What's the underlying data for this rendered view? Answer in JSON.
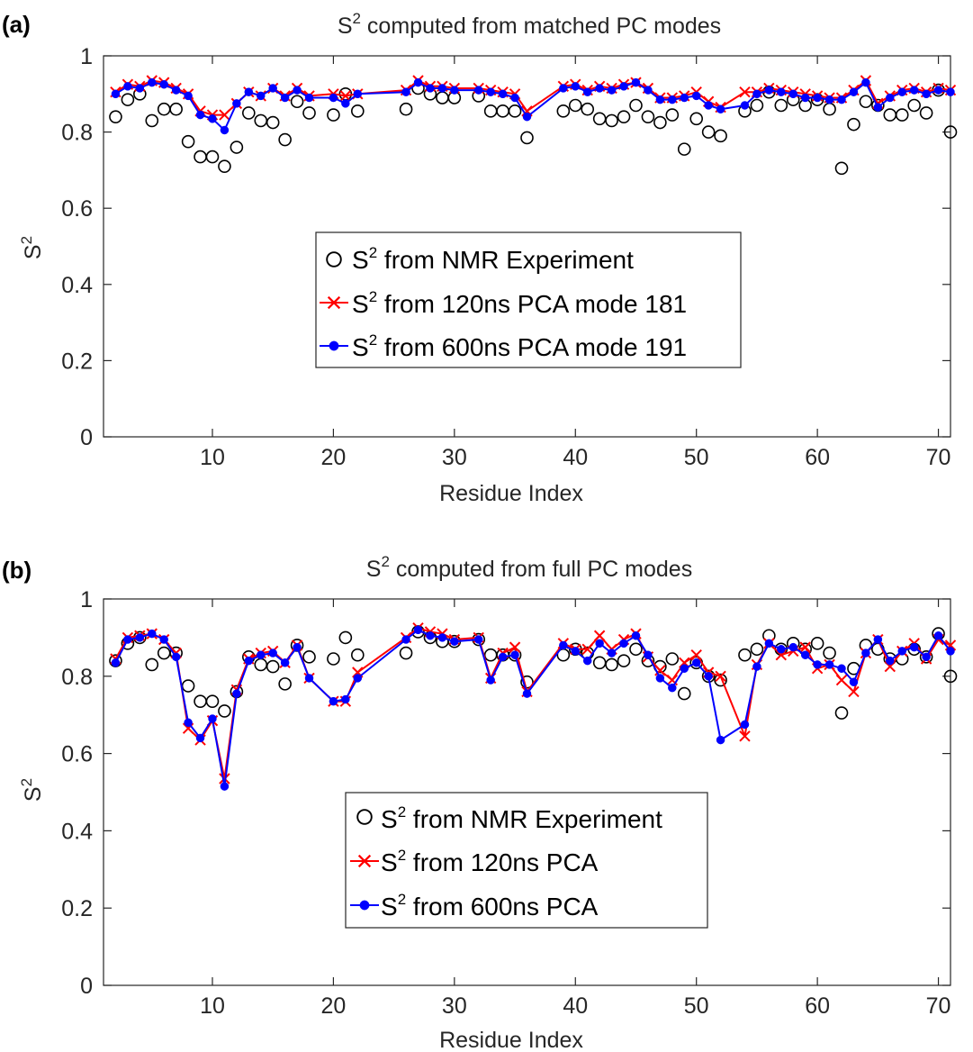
{
  "colors": {
    "nmr": "#000000",
    "pca120": "#ff0000",
    "pca600": "#0000ff"
  },
  "chart_data": [
    {
      "panel_label": "(a)",
      "type": "line",
      "title_prefix": "S",
      "title_sup": "2",
      "title_suffix": " computed from matched PC modes",
      "xlabel": "Residue Index",
      "ylabel": "S",
      "ylabel_sup": "2",
      "xlim": [
        1,
        71
      ],
      "ylim": [
        0,
        1
      ],
      "xticks": [
        10,
        20,
        30,
        40,
        50,
        60,
        70
      ],
      "yticks": [
        0,
        0.2,
        0.4,
        0.6,
        0.8,
        1
      ],
      "ytick_labels": [
        "0",
        "0.2",
        "0.4",
        "0.6",
        "0.8",
        "1"
      ],
      "legend_position": "center",
      "series": [
        {
          "name_prefix": "S",
          "name_sup": "2",
          "name_suffix": " from NMR Experiment",
          "marker": "circle",
          "x": [
            2,
            3,
            4,
            5,
            6,
            7,
            8,
            9,
            10,
            11,
            12,
            13,
            14,
            15,
            16,
            17,
            18,
            20,
            21,
            22,
            26,
            27,
            28,
            29,
            30,
            32,
            33,
            34,
            35,
            36,
            39,
            40,
            41,
            42,
            43,
            44,
            45,
            46,
            47,
            48,
            49,
            50,
            51,
            52,
            54,
            55,
            56,
            57,
            58,
            59,
            60,
            61,
            62,
            63,
            64,
            65,
            66,
            67,
            68,
            69,
            70,
            71
          ],
          "y": [
            0.84,
            0.885,
            0.9,
            0.83,
            0.86,
            0.86,
            0.775,
            0.735,
            0.735,
            0.71,
            0.76,
            0.85,
            0.83,
            0.825,
            0.78,
            0.88,
            0.85,
            0.845,
            0.9,
            0.855,
            0.86,
            0.915,
            0.9,
            0.89,
            0.89,
            0.895,
            0.855,
            0.855,
            0.855,
            0.785,
            0.855,
            0.87,
            0.86,
            0.835,
            0.83,
            0.84,
            0.87,
            0.84,
            0.825,
            0.845,
            0.755,
            0.835,
            0.8,
            0.79,
            0.855,
            0.87,
            0.905,
            0.87,
            0.885,
            0.87,
            0.885,
            0.86,
            0.705,
            0.82,
            0.88,
            0.87,
            0.845,
            0.845,
            0.87,
            0.85,
            0.91,
            0.8
          ]
        },
        {
          "name_prefix": "S",
          "name_sup": "2",
          "name_suffix": " from 120ns PCA mode 181",
          "marker": "x",
          "x": [
            2,
            3,
            4,
            5,
            6,
            7,
            8,
            9,
            10,
            11,
            12,
            13,
            14,
            15,
            16,
            17,
            18,
            20,
            21,
            22,
            26,
            27,
            28,
            29,
            30,
            32,
            33,
            34,
            35,
            36,
            39,
            40,
            41,
            42,
            43,
            44,
            45,
            46,
            47,
            48,
            49,
            50,
            51,
            52,
            54,
            55,
            56,
            57,
            58,
            59,
            60,
            61,
            62,
            63,
            64,
            65,
            66,
            67,
            68,
            69,
            70,
            71
          ],
          "y": [
            0.905,
            0.925,
            0.92,
            0.935,
            0.93,
            0.915,
            0.9,
            0.855,
            0.845,
            0.845,
            0.875,
            0.905,
            0.895,
            0.915,
            0.895,
            0.915,
            0.895,
            0.9,
            0.895,
            0.9,
            0.91,
            0.935,
            0.92,
            0.92,
            0.915,
            0.915,
            0.91,
            0.905,
            0.9,
            0.855,
            0.92,
            0.925,
            0.91,
            0.92,
            0.915,
            0.925,
            0.93,
            0.915,
            0.89,
            0.89,
            0.895,
            0.905,
            0.88,
            0.865,
            0.905,
            0.905,
            0.915,
            0.91,
            0.905,
            0.9,
            0.895,
            0.89,
            0.89,
            0.91,
            0.935,
            0.875,
            0.895,
            0.91,
            0.915,
            0.905,
            0.915,
            0.91
          ]
        },
        {
          "name_prefix": "S",
          "name_sup": "2",
          "name_suffix": " from 600ns PCA mode 191",
          "marker": "dot",
          "x": [
            2,
            3,
            4,
            5,
            6,
            7,
            8,
            9,
            10,
            11,
            12,
            13,
            14,
            15,
            16,
            17,
            18,
            20,
            21,
            22,
            26,
            27,
            28,
            29,
            30,
            32,
            33,
            34,
            35,
            36,
            39,
            40,
            41,
            42,
            43,
            44,
            45,
            46,
            47,
            48,
            49,
            50,
            51,
            52,
            54,
            55,
            56,
            57,
            58,
            59,
            60,
            61,
            62,
            63,
            64,
            65,
            66,
            67,
            68,
            69,
            70,
            71
          ],
          "y": [
            0.9,
            0.92,
            0.915,
            0.93,
            0.925,
            0.91,
            0.895,
            0.845,
            0.835,
            0.805,
            0.875,
            0.905,
            0.895,
            0.915,
            0.89,
            0.91,
            0.89,
            0.89,
            0.875,
            0.9,
            0.905,
            0.93,
            0.915,
            0.915,
            0.91,
            0.91,
            0.905,
            0.9,
            0.89,
            0.84,
            0.915,
            0.92,
            0.905,
            0.915,
            0.91,
            0.92,
            0.93,
            0.91,
            0.885,
            0.885,
            0.89,
            0.895,
            0.87,
            0.86,
            0.87,
            0.9,
            0.91,
            0.905,
            0.9,
            0.89,
            0.89,
            0.885,
            0.885,
            0.905,
            0.93,
            0.865,
            0.89,
            0.905,
            0.91,
            0.9,
            0.91,
            0.905
          ]
        }
      ]
    },
    {
      "panel_label": "(b)",
      "type": "line",
      "title_prefix": "S",
      "title_sup": "2",
      "title_suffix": " computed from full PC modes",
      "xlabel": "Residue Index",
      "ylabel": "S",
      "ylabel_sup": "2",
      "xlim": [
        1,
        71
      ],
      "ylim": [
        0,
        1
      ],
      "xticks": [
        10,
        20,
        30,
        40,
        50,
        60,
        70
      ],
      "yticks": [
        0,
        0.2,
        0.4,
        0.6,
        0.8,
        1
      ],
      "ytick_labels": [
        "0",
        "0.2",
        "0.4",
        "0.6",
        "0.8",
        "1"
      ],
      "legend_position": "center",
      "series": [
        {
          "name_prefix": "S",
          "name_sup": "2",
          "name_suffix": " from NMR Experiment",
          "marker": "circle",
          "x": [
            2,
            3,
            4,
            5,
            6,
            7,
            8,
            9,
            10,
            11,
            12,
            13,
            14,
            15,
            16,
            17,
            18,
            20,
            21,
            22,
            26,
            27,
            28,
            29,
            30,
            32,
            33,
            34,
            35,
            36,
            39,
            40,
            41,
            42,
            43,
            44,
            45,
            46,
            47,
            48,
            49,
            50,
            51,
            52,
            54,
            55,
            56,
            57,
            58,
            59,
            60,
            61,
            62,
            63,
            64,
            65,
            66,
            67,
            68,
            69,
            70,
            71
          ],
          "y": [
            0.84,
            0.885,
            0.9,
            0.83,
            0.86,
            0.86,
            0.775,
            0.735,
            0.735,
            0.71,
            0.76,
            0.85,
            0.83,
            0.825,
            0.78,
            0.88,
            0.85,
            0.845,
            0.9,
            0.855,
            0.86,
            0.915,
            0.9,
            0.89,
            0.89,
            0.895,
            0.855,
            0.855,
            0.855,
            0.785,
            0.855,
            0.87,
            0.86,
            0.835,
            0.83,
            0.84,
            0.87,
            0.84,
            0.825,
            0.845,
            0.755,
            0.835,
            0.8,
            0.79,
            0.855,
            0.87,
            0.905,
            0.87,
            0.885,
            0.87,
            0.885,
            0.86,
            0.705,
            0.82,
            0.88,
            0.87,
            0.845,
            0.845,
            0.87,
            0.85,
            0.91,
            0.8
          ]
        },
        {
          "name_prefix": "S",
          "name_sup": "2",
          "name_suffix": " from 120ns PCA",
          "marker": "x",
          "x": [
            2,
            3,
            4,
            5,
            6,
            7,
            8,
            9,
            10,
            11,
            12,
            13,
            14,
            15,
            16,
            17,
            18,
            20,
            21,
            22,
            26,
            27,
            28,
            29,
            30,
            32,
            33,
            34,
            35,
            36,
            39,
            40,
            41,
            42,
            43,
            44,
            45,
            46,
            47,
            48,
            49,
            50,
            51,
            52,
            54,
            55,
            56,
            57,
            58,
            59,
            60,
            61,
            62,
            63,
            64,
            65,
            66,
            67,
            68,
            69,
            70,
            71
          ],
          "y": [
            0.845,
            0.9,
            0.905,
            0.91,
            0.895,
            0.86,
            0.665,
            0.635,
            0.685,
            0.535,
            0.765,
            0.845,
            0.86,
            0.865,
            0.835,
            0.88,
            0.795,
            0.735,
            0.735,
            0.81,
            0.9,
            0.925,
            0.915,
            0.91,
            0.895,
            0.9,
            0.795,
            0.86,
            0.875,
            0.76,
            0.885,
            0.87,
            0.87,
            0.905,
            0.87,
            0.895,
            0.91,
            0.85,
            0.815,
            0.79,
            0.835,
            0.855,
            0.81,
            0.8,
            0.645,
            0.83,
            0.885,
            0.855,
            0.865,
            0.875,
            0.82,
            0.83,
            0.79,
            0.76,
            0.86,
            0.895,
            0.825,
            0.865,
            0.885,
            0.845,
            0.895,
            0.88
          ]
        },
        {
          "name_prefix": "S",
          "name_sup": "2",
          "name_suffix": " from 600ns PCA",
          "marker": "dot",
          "x": [
            2,
            3,
            4,
            5,
            6,
            7,
            8,
            9,
            10,
            11,
            12,
            13,
            14,
            15,
            16,
            17,
            18,
            20,
            21,
            22,
            26,
            27,
            28,
            29,
            30,
            32,
            33,
            34,
            35,
            36,
            39,
            40,
            41,
            42,
            43,
            44,
            45,
            46,
            47,
            48,
            49,
            50,
            51,
            52,
            54,
            55,
            56,
            57,
            58,
            59,
            60,
            61,
            62,
            63,
            64,
            65,
            66,
            67,
            68,
            69,
            70,
            71
          ],
          "y": [
            0.835,
            0.895,
            0.9,
            0.91,
            0.895,
            0.85,
            0.68,
            0.64,
            0.69,
            0.515,
            0.755,
            0.84,
            0.855,
            0.86,
            0.835,
            0.875,
            0.795,
            0.735,
            0.74,
            0.795,
            0.895,
            0.92,
            0.905,
            0.9,
            0.89,
            0.895,
            0.79,
            0.85,
            0.855,
            0.755,
            0.88,
            0.865,
            0.84,
            0.885,
            0.86,
            0.885,
            0.905,
            0.855,
            0.795,
            0.77,
            0.82,
            0.835,
            0.8,
            0.635,
            0.675,
            0.825,
            0.885,
            0.87,
            0.875,
            0.855,
            0.83,
            0.83,
            0.82,
            0.785,
            0.86,
            0.895,
            0.84,
            0.865,
            0.875,
            0.85,
            0.905,
            0.865
          ]
        }
      ]
    }
  ]
}
